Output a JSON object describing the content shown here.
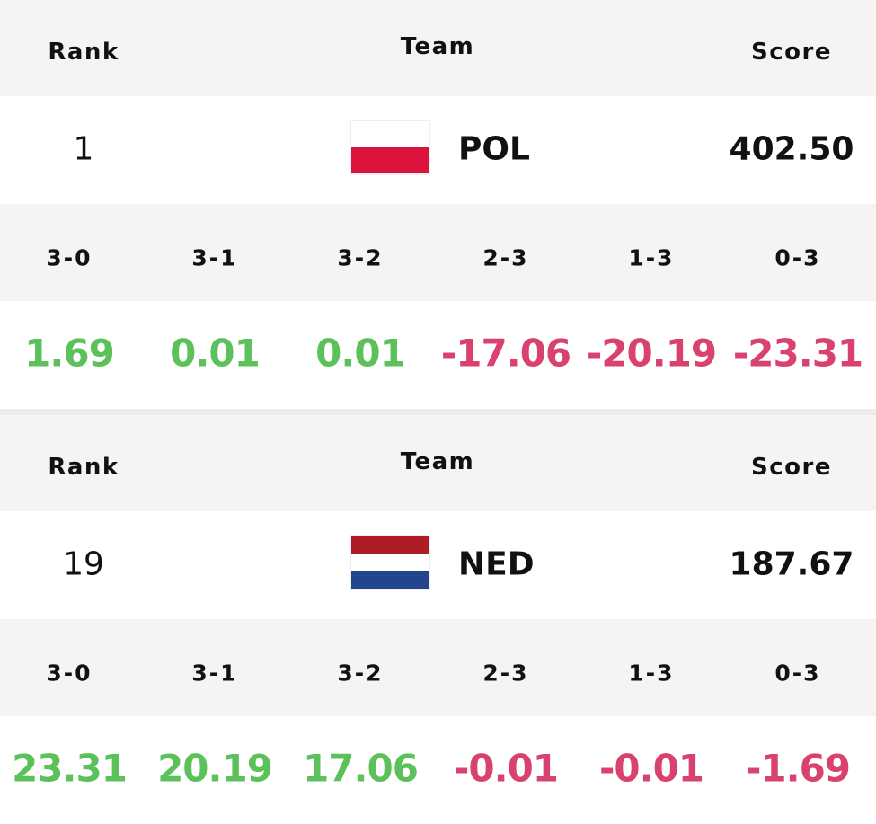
{
  "colors": {
    "positive": "#5cc15a",
    "negative": "#d9416e"
  },
  "blocks": [
    {
      "header": {
        "rank": "Rank",
        "team": "Team",
        "score": "Score"
      },
      "row": {
        "rank": "1",
        "team": "POL",
        "score": "402.50",
        "flag": [
          "#ffffff",
          "#dc143c"
        ]
      },
      "outcomes": {
        "labels": [
          "3-0",
          "3-1",
          "3-2",
          "2-3",
          "1-3",
          "0-3"
        ],
        "values": [
          "1.69",
          "0.01",
          "0.01",
          "-17.06",
          "-20.19",
          "-23.31"
        ]
      }
    },
    {
      "header": {
        "rank": "Rank",
        "team": "Team",
        "score": "Score"
      },
      "row": {
        "rank": "19",
        "team": "NED",
        "score": "187.67",
        "flag": [
          "#ae1c28",
          "#ffffff",
          "#21468b"
        ]
      },
      "outcomes": {
        "labels": [
          "3-0",
          "3-1",
          "3-2",
          "2-3",
          "1-3",
          "0-3"
        ],
        "values": [
          "23.31",
          "20.19",
          "17.06",
          "-0.01",
          "-0.01",
          "-1.69"
        ]
      }
    }
  ]
}
